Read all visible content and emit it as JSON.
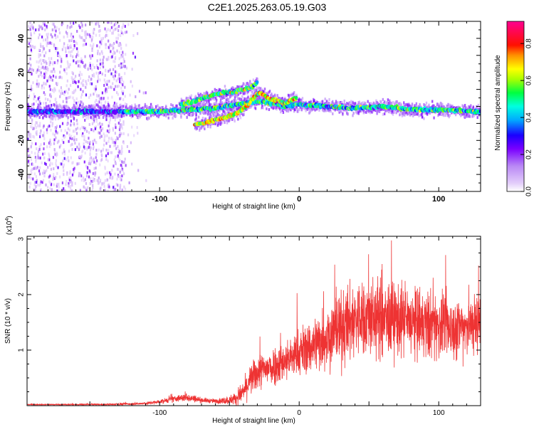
{
  "title": "C2E1.2025.263.05.19.G03",
  "chart_data": [
    {
      "type": "heatmap",
      "name": "spectrogram",
      "xlabel": "Height of straight line (km)",
      "ylabel": "Frequency (Hz)",
      "xlim": [
        -195,
        130
      ],
      "ylim": [
        -50,
        50
      ],
      "xticks": [
        -100,
        0,
        100
      ],
      "xtick_labels": [
        "-100",
        "0",
        "100"
      ],
      "yticks": [
        -40,
        -20,
        0,
        20,
        40
      ],
      "ytick_labels": [
        "-40",
        "-20",
        "0",
        "20",
        "40"
      ],
      "colorbar": {
        "label": "Normalized spectral amplitude",
        "range": [
          0,
          0.92
        ],
        "ticks": [
          0,
          0.2,
          0.4,
          0.6,
          0.8
        ],
        "tick_labels": [
          "0.0",
          "0.2",
          "0.4",
          "0.6",
          "0.8"
        ],
        "colors": [
          "#ffffff",
          "#d8b8f8",
          "#7a00ff",
          "#0000ff",
          "#00ffff",
          "#00ff00",
          "#ffff00",
          "#ff8000",
          "#ff0000",
          "#ff0090"
        ]
      },
      "ridges": [
        {
          "name": "main carrier",
          "x": [
            -195,
            -140,
            -100,
            -80,
            -60,
            -40,
            -30,
            -20,
            -10,
            0,
            20,
            40,
            60,
            80,
            100,
            130
          ],
          "freq": [
            -3,
            -3,
            -3,
            -2,
            -1,
            2,
            3,
            2,
            0,
            1,
            0,
            -1,
            0,
            -2,
            -2,
            -3
          ],
          "amplitude": 0.5
        },
        {
          "name": "upper branch",
          "x": [
            -85,
            -75,
            -65,
            -55,
            -45,
            -35,
            -30
          ],
          "freq": [
            1,
            3,
            6,
            8,
            9,
            11,
            14
          ],
          "amplitude": 0.55
        },
        {
          "name": "lower branch",
          "x": [
            -75,
            -65,
            -55,
            -45,
            -38,
            -33,
            -28,
            -20,
            -10,
            -2
          ],
          "freq": [
            -11,
            -9,
            -7,
            -4,
            0,
            5,
            8,
            4,
            2,
            5
          ],
          "amplitude": 0.7
        }
      ],
      "noise_region_x": [
        -195,
        -125
      ]
    },
    {
      "type": "line",
      "name": "snr",
      "xlabel": "Height of straight line (km)",
      "ylabel": "SNR (10 * v/v)",
      "y_multiplier": "(x10",
      "y_multiplier_exp": "4",
      "y_multiplier_close": ")",
      "xlim": [
        -195,
        130
      ],
      "ylim": [
        0,
        3.05
      ],
      "xticks": [
        -100,
        0,
        100
      ],
      "xtick_labels": [
        "-100",
        "0",
        "100"
      ],
      "yticks": [
        1,
        2,
        3
      ],
      "ytick_labels": [
        "1",
        "2",
        "3"
      ],
      "color": "#ee3333",
      "envelope": {
        "x": [
          -195,
          -140,
          -110,
          -100,
          -90,
          -80,
          -70,
          -60,
          -50,
          -45,
          -40,
          -35,
          -30,
          -20,
          -10,
          0,
          10,
          20,
          30,
          40,
          50,
          60,
          70,
          80,
          90,
          100,
          110,
          120,
          130
        ],
        "mean": [
          0.02,
          0.02,
          0.04,
          0.07,
          0.12,
          0.15,
          0.1,
          0.08,
          0.1,
          0.14,
          0.25,
          0.45,
          0.6,
          0.7,
          0.8,
          0.95,
          1.1,
          1.25,
          1.4,
          1.55,
          1.6,
          1.55,
          1.55,
          1.5,
          1.45,
          1.45,
          1.4,
          1.45,
          1.5
        ],
        "spread": [
          0.01,
          0.02,
          0.03,
          0.05,
          0.07,
          0.1,
          0.06,
          0.05,
          0.1,
          0.15,
          0.25,
          0.35,
          0.4,
          0.45,
          0.45,
          0.55,
          0.65,
          0.75,
          0.85,
          0.9,
          0.9,
          0.9,
          0.85,
          0.8,
          0.8,
          0.75,
          0.7,
          0.7,
          0.7
        ]
      }
    }
  ]
}
